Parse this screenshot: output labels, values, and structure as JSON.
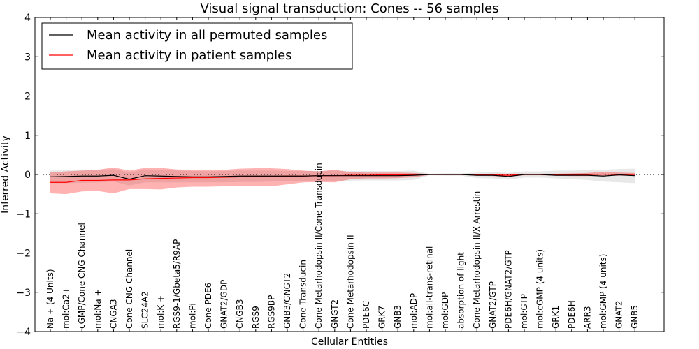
{
  "chart_data": {
    "type": "line",
    "title": "Visual signal transduction: Cones -- 56 samples",
    "xlabel": "Cellular Entities",
    "ylabel": "Inferred Activity",
    "ylim": [
      -4,
      4
    ],
    "yticks": [
      "4",
      "3",
      "2",
      "1",
      "0",
      "−1",
      "−2",
      "−3",
      "−4"
    ],
    "ytick_values": [
      4,
      3,
      2,
      1,
      0,
      -1,
      -2,
      -3,
      -4
    ],
    "reference_line": 0,
    "legend": {
      "placement": "top-left",
      "entries": [
        {
          "name": "Mean activity in all permuted samples",
          "color": "#000000"
        },
        {
          "name": "Mean activity in patient samples",
          "color": "#ff0000"
        }
      ]
    },
    "categories": [
      "Na + (4 Units)",
      "mol:Ca2+",
      "cGMP/Cone CNG Channel",
      "mol:Na +",
      "CNGA3",
      "Cone CNG Channel",
      "SLC24A2",
      "mol:K +",
      "RGS9-1/Gbeta5/R9AP",
      "mol:Pi",
      "Cone PDE6",
      "GNAT2/GDP",
      "CNGB3",
      "RGS9",
      "RGS9BP",
      "GNB3/GNGT2",
      "Cone Transducin",
      "Cone Metarhodopsin II/Cone Transducin",
      "GNGT2",
      "Cone Metarhodopsin II",
      "PDE6C",
      "GRK7",
      "GNB3",
      "mol:ADP",
      "mol:all-trans-retinal",
      "mol:GDP",
      "absorption of light",
      "Cone Metarhodopsin II/X-Arrestin",
      "GNAT2/GTP",
      "PDE6H/GNAT2/GTP",
      "mol:GTP",
      "mol:cGMP (4 units)",
      "GRK1",
      "PDE6H",
      "ARR3",
      "mol:GMP (4 units)",
      "GNAT2",
      "GNB5"
    ],
    "series": [
      {
        "name": "Mean activity in all permuted samples",
        "color": "#000000",
        "values": [
          -0.06,
          -0.05,
          -0.04,
          -0.04,
          -0.02,
          -0.12,
          -0.03,
          -0.04,
          -0.05,
          -0.06,
          -0.06,
          -0.05,
          -0.04,
          -0.04,
          -0.04,
          -0.04,
          -0.04,
          -0.03,
          -0.03,
          -0.03,
          -0.03,
          -0.03,
          -0.03,
          -0.02,
          0.0,
          0.0,
          0.0,
          -0.02,
          -0.02,
          -0.05,
          0.0,
          0.0,
          -0.02,
          -0.02,
          -0.02,
          -0.04,
          -0.01,
          -0.03
        ],
        "lower": [
          -0.22,
          -0.22,
          -0.21,
          -0.2,
          -0.18,
          -0.28,
          -0.2,
          -0.2,
          -0.2,
          -0.2,
          -0.2,
          -0.2,
          -0.19,
          -0.19,
          -0.18,
          -0.17,
          -0.16,
          -0.16,
          -0.16,
          -0.16,
          -0.15,
          -0.15,
          -0.15,
          -0.14,
          -0.02,
          -0.03,
          -0.03,
          -0.09,
          -0.1,
          -0.13,
          -0.08,
          -0.08,
          -0.1,
          -0.12,
          -0.14,
          -0.18,
          -0.2,
          -0.22
        ],
        "upper": [
          0.1,
          0.12,
          0.13,
          0.12,
          0.14,
          0.05,
          0.13,
          0.12,
          0.1,
          0.09,
          0.08,
          0.09,
          0.1,
          0.1,
          0.1,
          0.09,
          0.09,
          0.09,
          0.1,
          0.09,
          0.09,
          0.09,
          0.09,
          0.1,
          0.02,
          0.03,
          0.03,
          0.05,
          0.06,
          0.04,
          0.08,
          0.08,
          0.1,
          0.1,
          0.11,
          0.12,
          0.14,
          0.15
        ]
      },
      {
        "name": "Mean activity in patient samples",
        "color": "#ff0000",
        "values": [
          -0.2,
          -0.2,
          -0.15,
          -0.15,
          -0.14,
          -0.14,
          -0.11,
          -0.1,
          -0.09,
          -0.08,
          -0.08,
          -0.07,
          -0.06,
          -0.05,
          -0.05,
          -0.04,
          -0.04,
          -0.03,
          -0.03,
          -0.02,
          -0.02,
          -0.01,
          -0.01,
          -0.01,
          0.0,
          0.0,
          0.0,
          -0.01,
          -0.01,
          -0.02,
          0.0,
          0.0,
          -0.01,
          -0.01,
          0.0,
          0.01,
          0.0,
          0.0
        ],
        "lower": [
          -0.48,
          -0.5,
          -0.43,
          -0.42,
          -0.48,
          -0.37,
          -0.37,
          -0.38,
          -0.33,
          -0.31,
          -0.31,
          -0.3,
          -0.3,
          -0.29,
          -0.3,
          -0.25,
          -0.2,
          -0.19,
          -0.2,
          -0.12,
          -0.1,
          -0.1,
          -0.09,
          -0.07,
          -0.01,
          -0.01,
          -0.01,
          -0.03,
          -0.04,
          -0.06,
          -0.02,
          -0.02,
          -0.03,
          -0.04,
          -0.04,
          -0.03,
          -0.03,
          -0.02
        ],
        "upper": [
          0.05,
          0.08,
          0.1,
          0.12,
          0.18,
          0.1,
          0.17,
          0.17,
          0.13,
          0.12,
          0.11,
          0.12,
          0.15,
          0.16,
          0.16,
          0.14,
          0.1,
          0.08,
          0.12,
          0.06,
          0.05,
          0.05,
          0.05,
          0.04,
          0.01,
          0.01,
          0.01,
          0.01,
          0.02,
          0.02,
          0.02,
          0.02,
          0.02,
          0.03,
          0.04,
          0.07,
          0.05,
          0.04
        ]
      }
    ]
  }
}
